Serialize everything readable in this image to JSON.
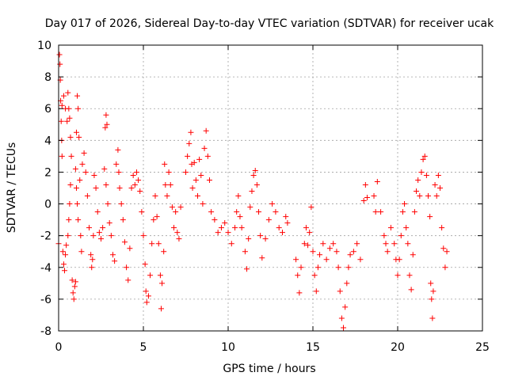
{
  "chart_data": {
    "type": "scatter",
    "title": "Day 017 of 2026, Sidereal Day-to-day VTEC variation (SDTVAR) for receiver ucak",
    "xlabel": "GPS time / hours",
    "ylabel": "SDTVAR / TECUs",
    "xlim": [
      0,
      25
    ],
    "ylim": [
      -8,
      10
    ],
    "xticks": [
      0,
      5,
      10,
      15,
      20,
      25
    ],
    "yticks": [
      -8,
      -6,
      -4,
      -2,
      0,
      2,
      4,
      6,
      8,
      10
    ],
    "xtick_labels": [
      "0",
      "5",
      "10",
      "15",
      "20",
      "25"
    ],
    "ytick_labels": [
      "-8",
      "-6",
      "-4",
      "-2",
      "0",
      "2",
      "4",
      "6",
      "8",
      "10"
    ],
    "grid": true,
    "marker": "+",
    "marker_color": "#ff0000",
    "series": [
      {
        "name": "SDTVAR",
        "points": [
          [
            0.0,
            -2.5
          ],
          [
            0.05,
            9.4
          ],
          [
            0.08,
            8.8
          ],
          [
            0.1,
            7.8
          ],
          [
            0.12,
            6.5
          ],
          [
            0.15,
            5.2
          ],
          [
            0.18,
            4.0
          ],
          [
            0.2,
            3.0
          ],
          [
            0.25,
            -3.0
          ],
          [
            0.3,
            -3.8
          ],
          [
            0.35,
            -4.2
          ],
          [
            0.4,
            -3.2
          ],
          [
            0.45,
            -2.6
          ],
          [
            0.2,
            6.2
          ],
          [
            0.3,
            6.8
          ],
          [
            0.4,
            6.0
          ],
          [
            0.5,
            5.2
          ],
          [
            0.55,
            7.0
          ],
          [
            0.6,
            6.0
          ],
          [
            0.65,
            5.4
          ],
          [
            0.7,
            4.2
          ],
          [
            0.75,
            3.0
          ],
          [
            0.6,
            -1.0
          ],
          [
            0.65,
            0.0
          ],
          [
            0.7,
            1.2
          ],
          [
            0.55,
            -2.0
          ],
          [
            0.8,
            -4.8
          ],
          [
            0.85,
            -5.6
          ],
          [
            0.9,
            -6.0
          ],
          [
            0.95,
            -5.2
          ],
          [
            1.0,
            -4.9
          ],
          [
            1.05,
            4.5
          ],
          [
            1.1,
            6.8
          ],
          [
            1.15,
            6.0
          ],
          [
            1.2,
            4.2
          ],
          [
            1.25,
            1.5
          ],
          [
            1.0,
            2.2
          ],
          [
            1.05,
            1.0
          ],
          [
            1.1,
            0.0
          ],
          [
            1.15,
            -1.0
          ],
          [
            1.3,
            -2.0
          ],
          [
            1.35,
            -3.0
          ],
          [
            1.4,
            2.5
          ],
          [
            1.5,
            3.2
          ],
          [
            1.6,
            2.0
          ],
          [
            1.7,
            0.5
          ],
          [
            1.8,
            -1.5
          ],
          [
            1.9,
            -3.2
          ],
          [
            1.95,
            -4.0
          ],
          [
            2.0,
            -3.5
          ],
          [
            2.05,
            -2.0
          ],
          [
            2.1,
            1.8
          ],
          [
            2.2,
            1.0
          ],
          [
            2.3,
            -0.5
          ],
          [
            2.4,
            -1.8
          ],
          [
            2.5,
            -2.2
          ],
          [
            2.6,
            -1.5
          ],
          [
            2.7,
            2.2
          ],
          [
            2.8,
            1.2
          ],
          [
            2.75,
            4.8
          ],
          [
            2.8,
            5.6
          ],
          [
            2.85,
            5.0
          ],
          [
            2.9,
            0.0
          ],
          [
            3.0,
            -1.2
          ],
          [
            3.1,
            -2.0
          ],
          [
            3.2,
            -3.2
          ],
          [
            3.3,
            -3.6
          ],
          [
            3.4,
            2.5
          ],
          [
            3.5,
            3.4
          ],
          [
            3.55,
            2.0
          ],
          [
            3.6,
            1.0
          ],
          [
            3.7,
            0.0
          ],
          [
            3.8,
            -1.0
          ],
          [
            3.9,
            -2.4
          ],
          [
            4.0,
            -4.0
          ],
          [
            4.1,
            -4.8
          ],
          [
            4.2,
            -2.8
          ],
          [
            4.3,
            1.0
          ],
          [
            4.4,
            1.8
          ],
          [
            4.5,
            1.2
          ],
          [
            4.6,
            2.0
          ],
          [
            4.7,
            1.5
          ],
          [
            4.8,
            0.8
          ],
          [
            4.9,
            -0.5
          ],
          [
            5.0,
            -2.0
          ],
          [
            5.1,
            -3.8
          ],
          [
            5.15,
            -5.5
          ],
          [
            5.2,
            -6.2
          ],
          [
            5.3,
            -5.8
          ],
          [
            5.4,
            -4.5
          ],
          [
            5.5,
            -2.5
          ],
          [
            5.6,
            -1.0
          ],
          [
            5.7,
            0.5
          ],
          [
            5.8,
            -0.8
          ],
          [
            5.9,
            -2.5
          ],
          [
            6.0,
            -4.5
          ],
          [
            6.05,
            -6.6
          ],
          [
            6.1,
            -5.0
          ],
          [
            6.2,
            -3.0
          ],
          [
            6.25,
            2.5
          ],
          [
            6.3,
            1.2
          ],
          [
            6.4,
            0.5
          ],
          [
            6.5,
            2.0
          ],
          [
            6.6,
            1.2
          ],
          [
            6.7,
            -0.2
          ],
          [
            6.8,
            -1.5
          ],
          [
            6.9,
            -0.5
          ],
          [
            7.0,
            -1.8
          ],
          [
            7.1,
            -2.2
          ],
          [
            7.2,
            -0.2
          ],
          [
            7.5,
            2.0
          ],
          [
            7.6,
            3.0
          ],
          [
            7.7,
            3.8
          ],
          [
            7.8,
            4.5
          ],
          [
            7.85,
            2.5
          ],
          [
            7.9,
            1.0
          ],
          [
            8.0,
            2.6
          ],
          [
            8.1,
            1.5
          ],
          [
            8.2,
            0.5
          ],
          [
            8.3,
            2.8
          ],
          [
            8.4,
            1.8
          ],
          [
            8.5,
            0.0
          ],
          [
            8.6,
            3.5
          ],
          [
            8.7,
            4.6
          ],
          [
            8.8,
            3.0
          ],
          [
            8.9,
            1.5
          ],
          [
            9.0,
            -0.5
          ],
          [
            9.2,
            -1.0
          ],
          [
            9.4,
            -1.8
          ],
          [
            9.6,
            -1.5
          ],
          [
            9.8,
            -1.2
          ],
          [
            10.0,
            -1.8
          ],
          [
            10.2,
            -2.5
          ],
          [
            10.4,
            -1.5
          ],
          [
            10.5,
            -0.5
          ],
          [
            10.6,
            0.5
          ],
          [
            10.7,
            -0.8
          ],
          [
            10.8,
            -1.5
          ],
          [
            11.0,
            -3.0
          ],
          [
            11.1,
            -4.1
          ],
          [
            11.2,
            -2.2
          ],
          [
            11.3,
            -0.2
          ],
          [
            11.4,
            0.8
          ],
          [
            11.5,
            1.8
          ],
          [
            11.6,
            2.1
          ],
          [
            11.7,
            1.2
          ],
          [
            11.8,
            -0.5
          ],
          [
            11.9,
            -2.0
          ],
          [
            12.0,
            -3.4
          ],
          [
            12.2,
            -2.2
          ],
          [
            12.4,
            -1.0
          ],
          [
            12.6,
            0.0
          ],
          [
            12.8,
            -0.5
          ],
          [
            13.0,
            -1.5
          ],
          [
            13.2,
            -1.8
          ],
          [
            13.4,
            -0.8
          ],
          [
            13.5,
            -1.2
          ],
          [
            14.0,
            -3.5
          ],
          [
            14.1,
            -4.5
          ],
          [
            14.2,
            -5.6
          ],
          [
            14.3,
            -4.0
          ],
          [
            14.5,
            -2.5
          ],
          [
            14.6,
            -1.5
          ],
          [
            14.7,
            -2.6
          ],
          [
            14.8,
            -1.8
          ],
          [
            14.9,
            -0.2
          ],
          [
            15.0,
            -3.0
          ],
          [
            15.1,
            -4.5
          ],
          [
            15.2,
            -5.5
          ],
          [
            15.3,
            -4.0
          ],
          [
            15.4,
            -3.2
          ],
          [
            15.6,
            -2.5
          ],
          [
            15.8,
            -3.5
          ],
          [
            16.0,
            -2.8
          ],
          [
            16.2,
            -2.5
          ],
          [
            16.4,
            -3.0
          ],
          [
            16.5,
            -4.0
          ],
          [
            16.6,
            -5.5
          ],
          [
            16.7,
            -7.2
          ],
          [
            16.8,
            -7.8
          ],
          [
            16.9,
            -6.5
          ],
          [
            17.0,
            -5.0
          ],
          [
            17.1,
            -4.0
          ],
          [
            17.2,
            -3.2
          ],
          [
            17.4,
            -3.0
          ],
          [
            17.6,
            -2.5
          ],
          [
            17.8,
            -3.5
          ],
          [
            18.0,
            0.2
          ],
          [
            18.1,
            1.2
          ],
          [
            18.2,
            0.4
          ],
          [
            18.6,
            0.5
          ],
          [
            18.7,
            -0.5
          ],
          [
            18.8,
            1.4
          ],
          [
            19.0,
            -0.5
          ],
          [
            19.2,
            -2.0
          ],
          [
            19.3,
            -2.5
          ],
          [
            19.4,
            -3.0
          ],
          [
            19.6,
            -1.5
          ],
          [
            19.8,
            -2.5
          ],
          [
            19.9,
            -3.5
          ],
          [
            20.0,
            -4.5
          ],
          [
            20.1,
            -3.5
          ],
          [
            20.2,
            -2.0
          ],
          [
            20.3,
            -0.5
          ],
          [
            20.4,
            0.0
          ],
          [
            20.5,
            -1.5
          ],
          [
            20.6,
            -2.5
          ],
          [
            20.7,
            -4.5
          ],
          [
            20.8,
            -5.4
          ],
          [
            20.9,
            -3.2
          ],
          [
            21.0,
            -0.5
          ],
          [
            21.1,
            0.8
          ],
          [
            21.2,
            1.5
          ],
          [
            21.3,
            0.5
          ],
          [
            21.4,
            2.0
          ],
          [
            21.5,
            2.8
          ],
          [
            21.6,
            3.0
          ],
          [
            21.7,
            1.8
          ],
          [
            21.8,
            0.5
          ],
          [
            21.9,
            -0.8
          ],
          [
            21.95,
            -5.0
          ],
          [
            22.0,
            -6.0
          ],
          [
            22.05,
            -7.2
          ],
          [
            22.1,
            -5.5
          ],
          [
            22.2,
            1.2
          ],
          [
            22.3,
            0.5
          ],
          [
            22.4,
            1.8
          ],
          [
            22.5,
            1.0
          ],
          [
            22.6,
            -1.5
          ],
          [
            22.7,
            -2.8
          ],
          [
            22.8,
            -4.0
          ],
          [
            22.9,
            -3.0
          ]
        ]
      }
    ]
  }
}
